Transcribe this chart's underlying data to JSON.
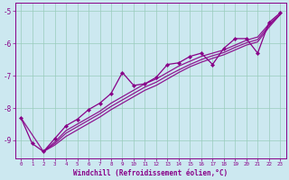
{
  "xlabel": "Windchill (Refroidissement éolien,°C)",
  "bg_color": "#cce8f0",
  "grid_color": "#99ccbb",
  "line_color": "#880088",
  "xlim": [
    -0.5,
    23.5
  ],
  "ylim": [
    -9.55,
    -4.75
  ],
  "yticks": [
    -9,
    -8,
    -7,
    -6,
    -5
  ],
  "xticks": [
    0,
    1,
    2,
    3,
    4,
    5,
    6,
    7,
    8,
    9,
    10,
    11,
    12,
    13,
    14,
    15,
    16,
    17,
    18,
    19,
    20,
    21,
    22,
    23
  ],
  "main_series": [
    [
      0,
      -8.3
    ],
    [
      1,
      -9.1
    ],
    [
      2,
      -9.35
    ],
    [
      3,
      -8.95
    ],
    [
      4,
      -8.55
    ],
    [
      5,
      -8.35
    ],
    [
      6,
      -8.05
    ],
    [
      7,
      -7.85
    ],
    [
      8,
      -7.55
    ],
    [
      9,
      -6.9
    ],
    [
      10,
      -7.3
    ],
    [
      11,
      -7.25
    ],
    [
      12,
      -7.05
    ],
    [
      13,
      -6.65
    ],
    [
      14,
      -6.6
    ],
    [
      15,
      -6.4
    ],
    [
      16,
      -6.3
    ],
    [
      17,
      -6.65
    ],
    [
      18,
      -6.15
    ],
    [
      19,
      -5.85
    ],
    [
      20,
      -5.85
    ],
    [
      21,
      -6.3
    ],
    [
      22,
      -5.35
    ],
    [
      23,
      -5.05
    ]
  ],
  "smooth_lines": [
    [
      [
        2,
        -9.35
      ],
      [
        3,
        -9.05
      ],
      [
        4,
        -8.7
      ],
      [
        5,
        -8.5
      ],
      [
        6,
        -8.3
      ],
      [
        7,
        -8.1
      ],
      [
        8,
        -7.85
      ],
      [
        9,
        -7.65
      ],
      [
        10,
        -7.45
      ],
      [
        11,
        -7.25
      ],
      [
        12,
        -7.1
      ],
      [
        13,
        -6.9
      ],
      [
        14,
        -6.7
      ],
      [
        15,
        -6.55
      ],
      [
        16,
        -6.4
      ],
      [
        17,
        -6.3
      ],
      [
        18,
        -6.2
      ],
      [
        19,
        -6.05
      ],
      [
        20,
        -5.9
      ],
      [
        21,
        -5.8
      ],
      [
        22,
        -5.4
      ],
      [
        23,
        -5.1
      ]
    ],
    [
      [
        2,
        -9.35
      ],
      [
        3,
        -9.1
      ],
      [
        4,
        -8.78
      ],
      [
        5,
        -8.58
      ],
      [
        6,
        -8.38
      ],
      [
        7,
        -8.18
      ],
      [
        8,
        -7.95
      ],
      [
        9,
        -7.75
      ],
      [
        10,
        -7.55
      ],
      [
        11,
        -7.35
      ],
      [
        12,
        -7.2
      ],
      [
        13,
        -7.0
      ],
      [
        14,
        -6.82
      ],
      [
        15,
        -6.65
      ],
      [
        16,
        -6.5
      ],
      [
        17,
        -6.38
      ],
      [
        18,
        -6.28
      ],
      [
        19,
        -6.12
      ],
      [
        20,
        -5.98
      ],
      [
        21,
        -5.88
      ],
      [
        22,
        -5.45
      ],
      [
        23,
        -5.1
      ]
    ],
    [
      [
        0,
        -8.3
      ],
      [
        2,
        -9.35
      ],
      [
        3,
        -9.15
      ],
      [
        4,
        -8.88
      ],
      [
        5,
        -8.68
      ],
      [
        6,
        -8.48
      ],
      [
        7,
        -8.28
      ],
      [
        8,
        -8.05
      ],
      [
        9,
        -7.85
      ],
      [
        10,
        -7.65
      ],
      [
        11,
        -7.45
      ],
      [
        12,
        -7.3
      ],
      [
        13,
        -7.1
      ],
      [
        14,
        -6.9
      ],
      [
        15,
        -6.72
      ],
      [
        16,
        -6.58
      ],
      [
        17,
        -6.46
      ],
      [
        18,
        -6.35
      ],
      [
        19,
        -6.2
      ],
      [
        20,
        -6.05
      ],
      [
        21,
        -5.95
      ],
      [
        22,
        -5.5
      ],
      [
        23,
        -5.1
      ]
    ]
  ]
}
